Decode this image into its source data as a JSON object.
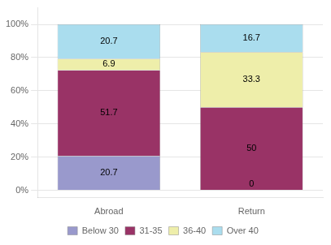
{
  "chart_data": {
    "type": "bar",
    "stacked": true,
    "categories": [
      "Abroad",
      "Return"
    ],
    "series": [
      {
        "name": "Below 30",
        "color": "#9999cc",
        "values": [
          20.7,
          0
        ]
      },
      {
        "name": "31-35",
        "color": "#993366",
        "values": [
          51.7,
          50
        ]
      },
      {
        "name": "36-40",
        "color": "#eeeeaa",
        "values": [
          6.9,
          33.3
        ]
      },
      {
        "name": "Over 40",
        "color": "#aaddee",
        "values": [
          20.7,
          16.7
        ]
      }
    ],
    "ylim": [
      -4.5,
      110
    ],
    "yticks": [
      {
        "value": 0,
        "label": "0%"
      },
      {
        "value": 20,
        "label": "20%"
      },
      {
        "value": 40,
        "label": "40%"
      },
      {
        "value": 60,
        "label": "60%"
      },
      {
        "value": 80,
        "label": "80%"
      },
      {
        "value": 100,
        "label": "100%"
      }
    ],
    "grid": true,
    "legend": "bottom",
    "data_labels": true
  }
}
